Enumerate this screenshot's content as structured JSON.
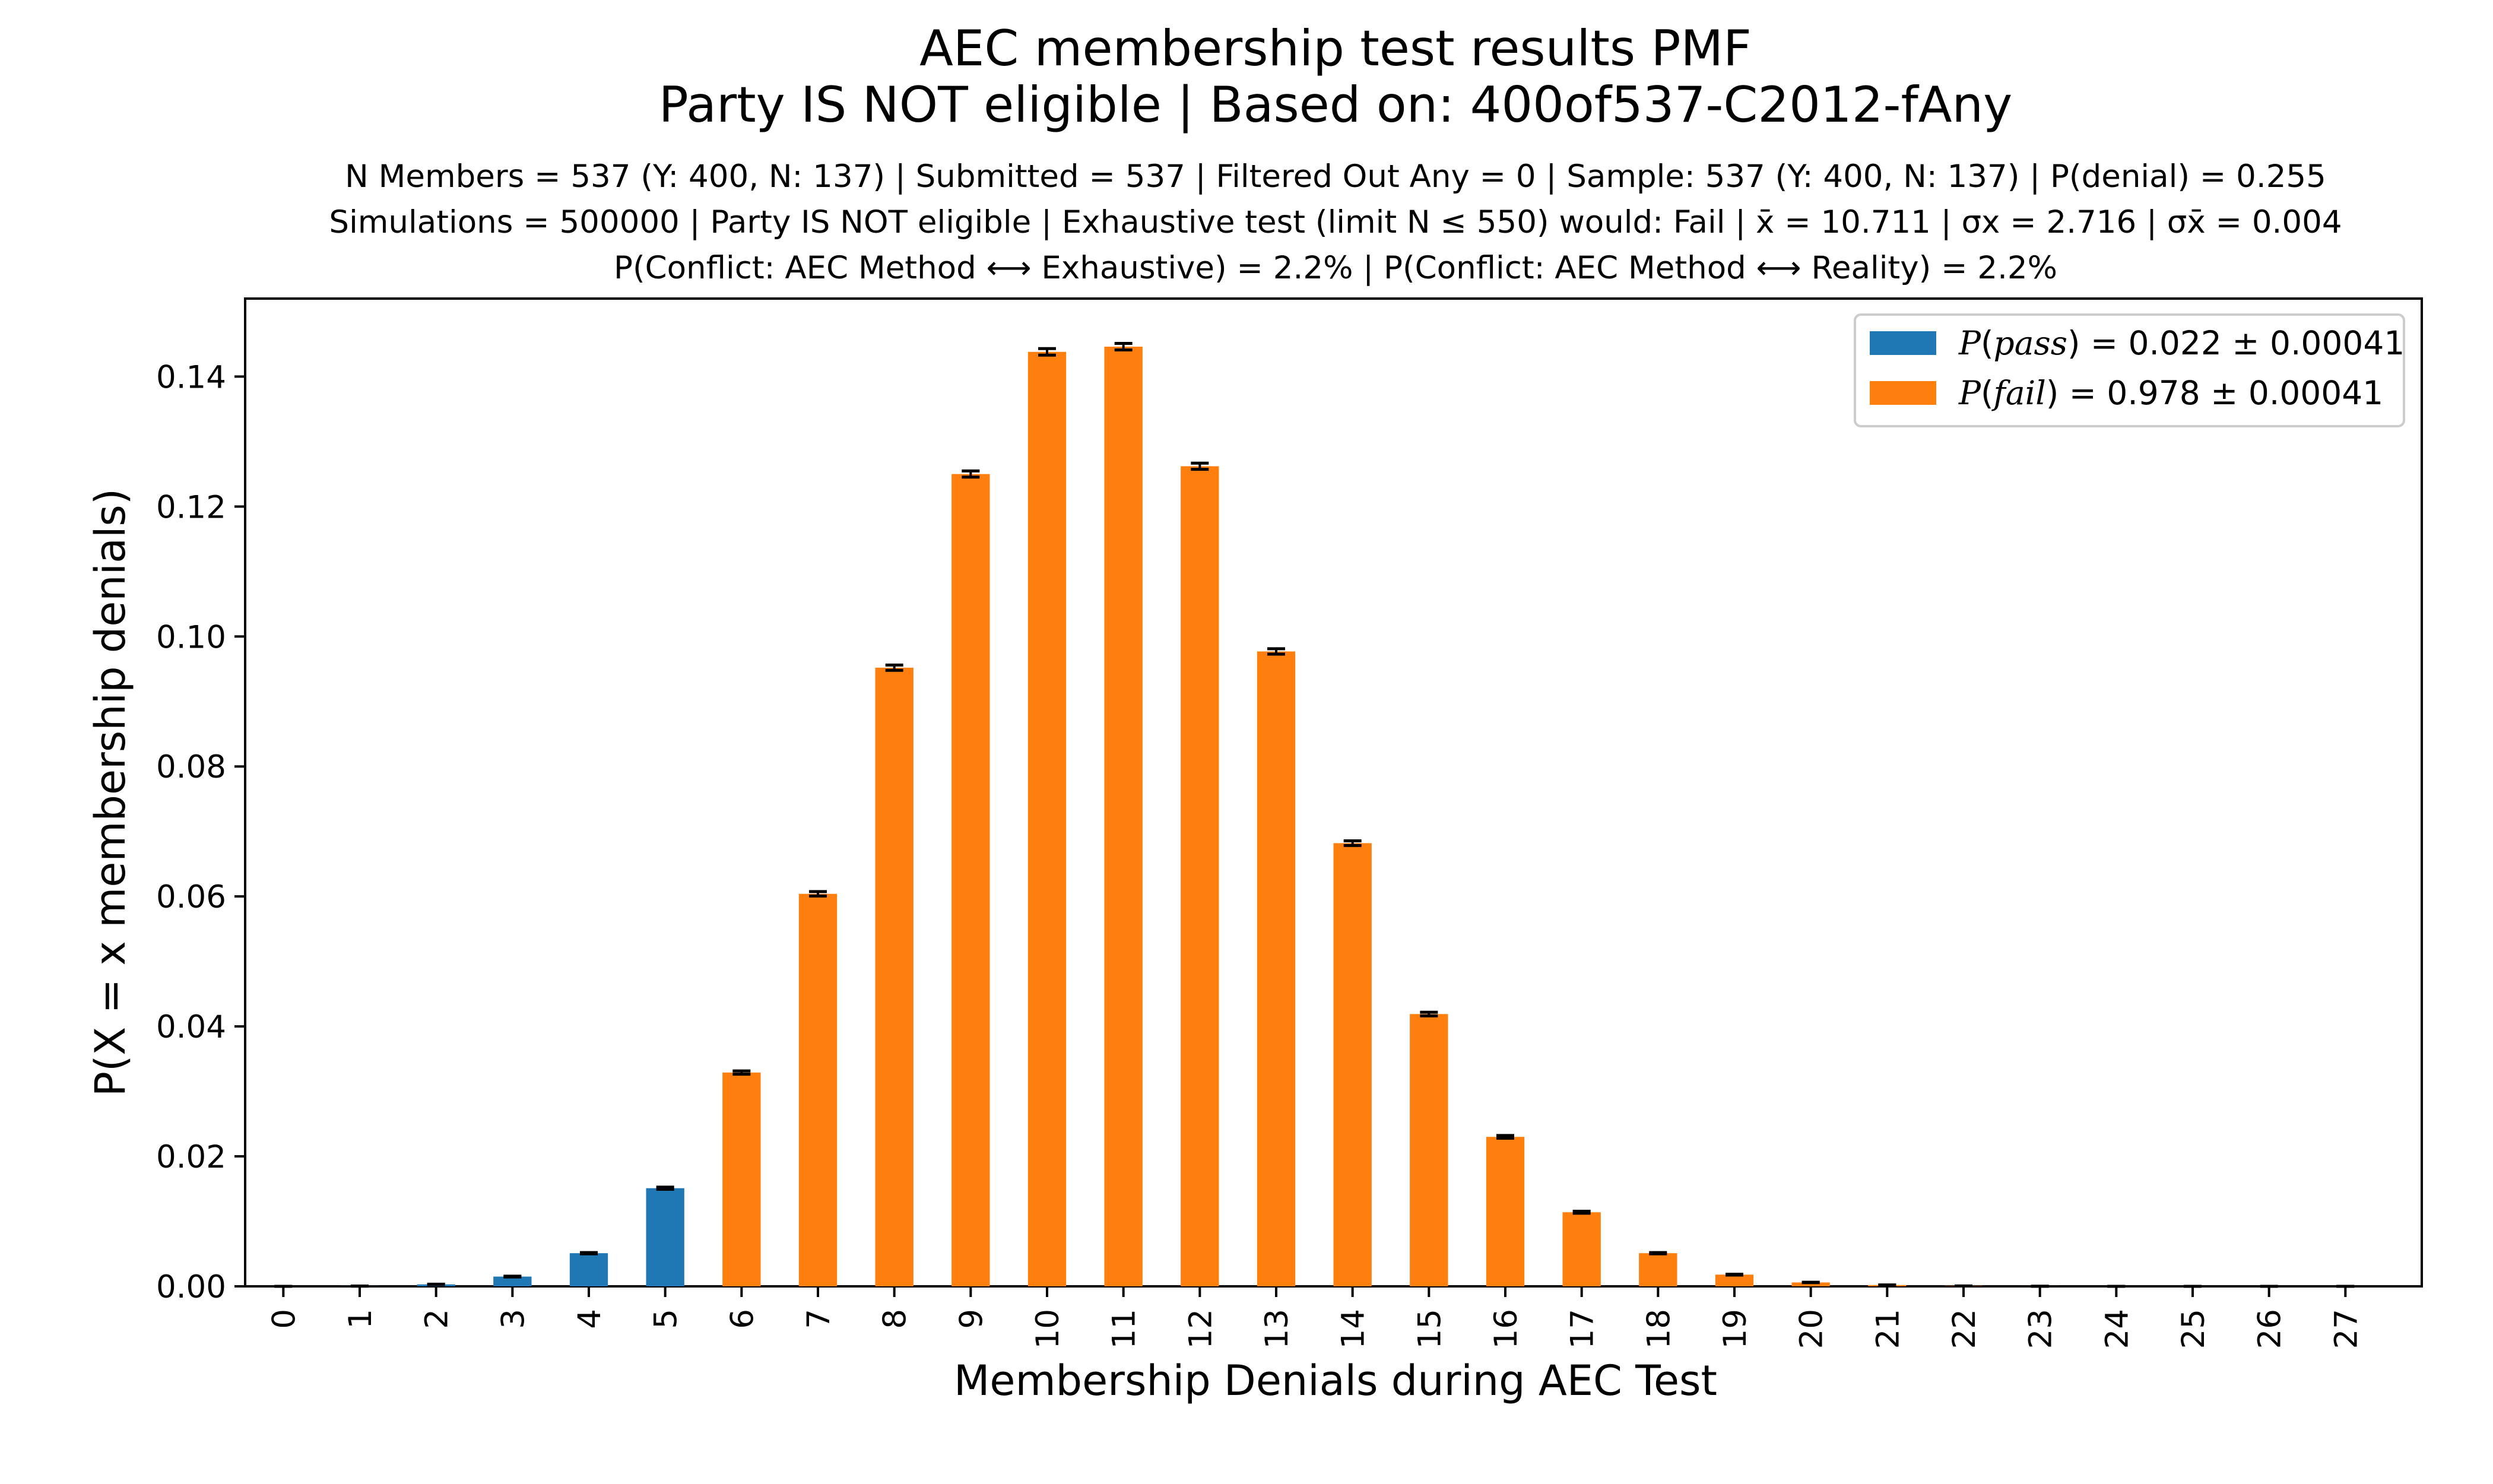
{
  "chart_data": {
    "type": "bar",
    "title": [
      "AEC membership test results PMF",
      "Party IS NOT eligible | Based on: 400of537-C2012-fAny"
    ],
    "subtitle": [
      "N Members = 537 (Y: 400, N: 137) | Submitted = 537 | Filtered Out Any = 0 | Sample: 537 (Y: 400, N: 137) | P(denial) = 0.255",
      "Simulations = 500000 | Party IS NOT eligible | Exhaustive test (limit N ≤ 550) would: Fail | x̄ = 10.711 | σx = 2.716 | σx̄ = 0.004",
      "P(Conflict: AEC Method ⟷ Exhaustive) = 2.2% | P(Conflict: AEC Method ⟷ Reality) = 2.2%"
    ],
    "xlabel": "Membership Denials during AEC Test",
    "ylabel": "P(X = x membership denials)",
    "categories": [
      "0",
      "1",
      "2",
      "3",
      "4",
      "5",
      "6",
      "7",
      "8",
      "9",
      "10",
      "11",
      "12",
      "13",
      "14",
      "15",
      "16",
      "17",
      "18",
      "19",
      "20",
      "21",
      "22",
      "23",
      "24",
      "25",
      "26",
      "27"
    ],
    "values": [
      0.0,
      3e-05,
      0.0003,
      0.0015,
      0.0051,
      0.0151,
      0.0329,
      0.0604,
      0.0952,
      0.125,
      0.1438,
      0.1446,
      0.1262,
      0.0977,
      0.0682,
      0.0419,
      0.023,
      0.0114,
      0.0051,
      0.0018,
      0.0006,
      0.0002,
      5e-05,
      1e-05,
      0.0,
      0.0,
      0.0,
      0.0
    ],
    "errors": [
      0.0,
      1e-05,
      3e-05,
      6e-05,
      0.0001,
      0.00017,
      0.00025,
      0.00034,
      0.00041,
      0.00047,
      0.0005,
      0.0005,
      0.00047,
      0.00042,
      0.00036,
      0.00028,
      0.00021,
      0.00015,
      0.0001,
      6e-05,
      3e-05,
      2e-05,
      1e-05,
      0.0,
      0.0,
      0.0,
      0.0,
      0.0
    ],
    "pass_max_category": 5,
    "ylim": [
      0,
      0.152
    ],
    "yticks": [
      "0.00",
      "0.02",
      "0.04",
      "0.06",
      "0.08",
      "0.10",
      "0.12",
      "0.14"
    ],
    "legend": [
      {
        "name": "pass",
        "value": "0.022",
        "pm": "0.00041",
        "color": "#1f77b4"
      },
      {
        "name": "fail",
        "value": "0.978",
        "pm": "0.00041",
        "color": "#ff7f0e"
      }
    ],
    "legend_position": "top-right",
    "grid": false
  }
}
